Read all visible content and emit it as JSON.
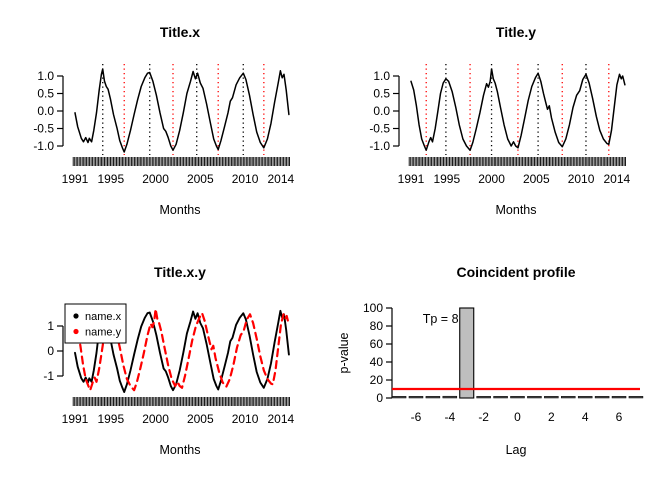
{
  "figure": {
    "background": "#ffffff",
    "series_color_x": "#000000",
    "series_color_y": "#ff0000",
    "peak_line_color": "#000000",
    "trough_line_color": "#ff0000"
  },
  "chart_data": [
    {
      "id": "title-x",
      "type": "line",
      "title": "Title.x",
      "xlabel": "Months",
      "ylabel": "",
      "xlim": [
        1990.6,
        2015.4
      ],
      "ylim": [
        -1.25,
        1.25
      ],
      "x_ticks": [
        1991,
        1995,
        2000,
        2005,
        2010,
        2014
      ],
      "y_ticks": [
        1.0,
        0.5,
        0.0,
        -0.5,
        -1.0
      ],
      "y_tick_labels": [
        "1.0",
        "0.5",
        "0.0",
        "-0.5",
        "-1.0"
      ],
      "rug": {
        "from": 1990.8,
        "to": 2015.0,
        "step": 0.1667
      },
      "vlines_peaks": [
        1994.1,
        1999.35,
        2004.6,
        2009.8
      ],
      "vlines_troughs": [
        1996.5,
        2001.95,
        2007.0,
        2012.1
      ],
      "series": [
        {
          "name": "x",
          "color": "#000000",
          "dash": null,
          "width": 1.5,
          "points": [
            [
              1991.0,
              -0.05
            ],
            [
              1991.3,
              -0.45
            ],
            [
              1991.7,
              -0.78
            ],
            [
              1991.95,
              -0.88
            ],
            [
              1992.2,
              -0.76
            ],
            [
              1992.45,
              -0.9
            ],
            [
              1992.6,
              -0.78
            ],
            [
              1992.85,
              -0.88
            ],
            [
              1993.1,
              -0.55
            ],
            [
              1993.4,
              -0.05
            ],
            [
              1993.7,
              0.6
            ],
            [
              1993.95,
              1.05
            ],
            [
              1994.1,
              1.2
            ],
            [
              1994.3,
              0.85
            ],
            [
              1994.5,
              0.7
            ],
            [
              1994.7,
              0.62
            ],
            [
              1994.95,
              0.35
            ],
            [
              1995.3,
              -0.1
            ],
            [
              1995.7,
              -0.5
            ],
            [
              1996.0,
              -0.85
            ],
            [
              1996.3,
              -1.05
            ],
            [
              1996.5,
              -1.17
            ],
            [
              1996.8,
              -0.95
            ],
            [
              1997.2,
              -0.55
            ],
            [
              1997.6,
              -0.1
            ],
            [
              1998.0,
              0.32
            ],
            [
              1998.4,
              0.7
            ],
            [
              1998.8,
              0.95
            ],
            [
              1999.1,
              1.08
            ],
            [
              1999.35,
              1.1
            ],
            [
              1999.7,
              0.85
            ],
            [
              2000.1,
              0.45
            ],
            [
              2000.5,
              -0.05
            ],
            [
              2000.9,
              -0.5
            ],
            [
              2001.15,
              -0.58
            ],
            [
              2001.4,
              -0.75
            ],
            [
              2001.7,
              -1.0
            ],
            [
              2001.95,
              -1.12
            ],
            [
              2002.3,
              -0.95
            ],
            [
              2002.7,
              -0.55
            ],
            [
              2003.1,
              -0.05
            ],
            [
              2003.5,
              0.5
            ],
            [
              2003.9,
              0.85
            ],
            [
              2004.2,
              1.13
            ],
            [
              2004.45,
              0.92
            ],
            [
              2004.7,
              1.08
            ],
            [
              2005.0,
              0.8
            ],
            [
              2005.3,
              0.65
            ],
            [
              2005.7,
              0.2
            ],
            [
              2006.1,
              -0.3
            ],
            [
              2006.5,
              -0.8
            ],
            [
              2006.8,
              -1.0
            ],
            [
              2007.0,
              -1.1
            ],
            [
              2007.3,
              -0.85
            ],
            [
              2007.7,
              -0.45
            ],
            [
              2008.1,
              -0.05
            ],
            [
              2008.35,
              0.28
            ],
            [
              2008.6,
              0.38
            ],
            [
              2009.0,
              0.75
            ],
            [
              2009.4,
              0.95
            ],
            [
              2009.8,
              1.08
            ],
            [
              2010.1,
              0.9
            ],
            [
              2010.5,
              0.45
            ],
            [
              2010.9,
              -0.1
            ],
            [
              2011.3,
              -0.6
            ],
            [
              2011.7,
              -0.9
            ],
            [
              2012.1,
              -1.05
            ],
            [
              2012.5,
              -0.8
            ],
            [
              2012.9,
              -0.35
            ],
            [
              2013.3,
              0.25
            ],
            [
              2013.7,
              0.8
            ],
            [
              2013.95,
              1.15
            ],
            [
              2014.15,
              0.95
            ],
            [
              2014.35,
              1.05
            ],
            [
              2014.6,
              0.6
            ],
            [
              2014.9,
              -0.1
            ]
          ]
        }
      ]
    },
    {
      "id": "title-y",
      "type": "line",
      "title": "Title.y",
      "xlabel": "Months",
      "ylabel": "",
      "xlim": [
        1990.6,
        2015.4
      ],
      "ylim": [
        -1.25,
        1.25
      ],
      "x_ticks": [
        1991,
        1995,
        2000,
        2005,
        2010,
        2014
      ],
      "y_ticks": [
        1.0,
        0.5,
        0.0,
        -0.5,
        -1.0
      ],
      "y_tick_labels": [
        "1.0",
        "0.5",
        "0.0",
        "-0.5",
        "-1.0"
      ],
      "rug": {
        "from": 1990.8,
        "to": 2015.0,
        "step": 0.1667
      },
      "vlines_peaks": [
        1994.9,
        2000.0,
        2005.2,
        2010.55
      ],
      "vlines_troughs": [
        1992.7,
        1997.6,
        2002.95,
        2007.9,
        2013.1
      ],
      "series": [
        {
          "name": "y",
          "color": "#000000",
          "dash": null,
          "width": 1.5,
          "points": [
            [
              1991.0,
              0.85
            ],
            [
              1991.3,
              0.6
            ],
            [
              1991.6,
              0.15
            ],
            [
              1991.9,
              -0.4
            ],
            [
              1992.2,
              -0.8
            ],
            [
              1992.5,
              -1.0
            ],
            [
              1992.7,
              -1.12
            ],
            [
              1993.0,
              -0.88
            ],
            [
              1993.2,
              -0.76
            ],
            [
              1993.4,
              -0.88
            ],
            [
              1993.7,
              -0.5
            ],
            [
              1994.0,
              0.0
            ],
            [
              1994.3,
              0.5
            ],
            [
              1994.6,
              0.8
            ],
            [
              1994.9,
              0.92
            ],
            [
              1995.2,
              0.85
            ],
            [
              1995.6,
              0.55
            ],
            [
              1996.0,
              0.1
            ],
            [
              1996.4,
              -0.4
            ],
            [
              1996.8,
              -0.8
            ],
            [
              1997.2,
              -1.0
            ],
            [
              1997.6,
              -1.12
            ],
            [
              1997.9,
              -0.9
            ],
            [
              1998.3,
              -0.5
            ],
            [
              1998.7,
              -0.05
            ],
            [
              1999.1,
              0.45
            ],
            [
              1999.45,
              0.78
            ],
            [
              1999.65,
              0.68
            ],
            [
              1999.85,
              0.85
            ],
            [
              2000.0,
              1.2
            ],
            [
              2000.2,
              0.92
            ],
            [
              2000.4,
              0.8
            ],
            [
              2000.65,
              0.55
            ],
            [
              2001.0,
              0.1
            ],
            [
              2001.4,
              -0.4
            ],
            [
              2001.8,
              -0.8
            ],
            [
              2002.2,
              -1.0
            ],
            [
              2002.45,
              -0.88
            ],
            [
              2002.7,
              -1.0
            ],
            [
              2002.95,
              -1.05
            ],
            [
              2003.3,
              -0.7
            ],
            [
              2003.7,
              -0.2
            ],
            [
              2004.1,
              0.3
            ],
            [
              2004.5,
              0.7
            ],
            [
              2004.9,
              0.95
            ],
            [
              2005.2,
              1.08
            ],
            [
              2005.5,
              0.85
            ],
            [
              2005.8,
              0.5
            ],
            [
              2006.05,
              0.25
            ],
            [
              2006.25,
              0.05
            ],
            [
              2006.45,
              0.15
            ],
            [
              2006.7,
              -0.2
            ],
            [
              2007.1,
              -0.6
            ],
            [
              2007.5,
              -0.9
            ],
            [
              2007.9,
              -1.02
            ],
            [
              2008.3,
              -0.8
            ],
            [
              2008.7,
              -0.4
            ],
            [
              2009.1,
              0.1
            ],
            [
              2009.5,
              0.45
            ],
            [
              2009.85,
              0.58
            ],
            [
              2010.2,
              0.9
            ],
            [
              2010.55,
              1.05
            ],
            [
              2010.9,
              0.8
            ],
            [
              2011.3,
              0.35
            ],
            [
              2011.7,
              -0.15
            ],
            [
              2012.1,
              -0.55
            ],
            [
              2012.5,
              -0.8
            ],
            [
              2012.9,
              -0.93
            ],
            [
              2013.1,
              -0.95
            ],
            [
              2013.4,
              -0.55
            ],
            [
              2013.7,
              0.1
            ],
            [
              2014.0,
              0.75
            ],
            [
              2014.3,
              1.05
            ],
            [
              2014.5,
              0.92
            ],
            [
              2014.65,
              1.0
            ],
            [
              2014.9,
              0.75
            ]
          ]
        }
      ]
    },
    {
      "id": "title-x-y",
      "type": "line",
      "title": "Title.x.y",
      "xlabel": "Months",
      "ylabel": "",
      "xlim": [
        1990.6,
        2015.4
      ],
      "ylim": [
        -1.9,
        1.9
      ],
      "x_ticks": [
        1991,
        1995,
        2000,
        2005,
        2010,
        2014
      ],
      "y_ticks": [
        1,
        0,
        -1
      ],
      "y_tick_labels": [
        "1",
        "0",
        "-1"
      ],
      "rug": {
        "from": 1990.8,
        "to": 2015.0,
        "step": 0.1667
      },
      "series_scale": 1.4,
      "legend": {
        "position": "topleft",
        "items": [
          {
            "label": "name.x",
            "color": "#000000"
          },
          {
            "label": "name.y",
            "color": "#ff0000"
          }
        ]
      },
      "series": [
        {
          "name": "name.x",
          "color": "#000000",
          "dash": null,
          "width": 1.9,
          "source": 0
        },
        {
          "name": "name.y",
          "color": "#ff0000",
          "dash": [
            7,
            5
          ],
          "width": 2.2,
          "source": 1
        }
      ]
    },
    {
      "id": "coincident-profile",
      "type": "bar",
      "title": "Coincident profile",
      "xlabel": "Lag",
      "ylabel": "p-value",
      "xlim": [
        -7.6,
        7.6
      ],
      "ylim": [
        0,
        100
      ],
      "x_ticks": [
        -6,
        -4,
        -2,
        0,
        2,
        4,
        6
      ],
      "y_ticks": [
        0,
        20,
        40,
        60,
        80,
        100
      ],
      "categories": [
        -7,
        -6,
        -5,
        -4,
        -3,
        -2,
        -1,
        0,
        1,
        2,
        3,
        4,
        5,
        6,
        7
      ],
      "values": [
        1,
        1,
        1,
        2,
        100,
        1,
        1,
        1,
        1,
        1,
        1,
        1,
        1,
        1,
        1
      ],
      "highlight_lag": -3,
      "bar_fill": "#bebebe",
      "bar_stroke": "#000000",
      "small_bar_fill": "#4a4a4a",
      "ref_line": {
        "y": 10,
        "color": "#ff0000"
      },
      "annotation": {
        "text": "Tp = 8",
        "x": -5.6,
        "y": 88
      }
    }
  ]
}
